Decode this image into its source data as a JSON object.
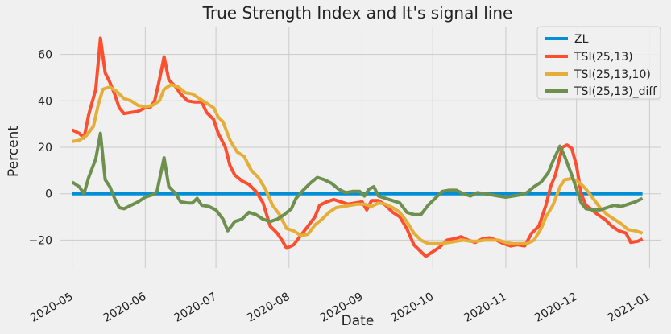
{
  "chart_data": {
    "type": "line",
    "title": "True Strength Index and It's signal line",
    "xlabel": "Date",
    "ylabel": "Percent",
    "x_domain": [
      "2020-04-26",
      "2021-01-06"
    ],
    "ylim": [
      -32,
      72
    ],
    "y_ticks": [
      -20,
      0,
      20,
      40,
      60
    ],
    "y_tick_labels": [
      "−20",
      "0",
      "20",
      "40",
      "60"
    ],
    "x_ticks": [
      {
        "date": "2020-05-01",
        "label": "2020-05"
      },
      {
        "date": "2020-06-01",
        "label": "2020-06"
      },
      {
        "date": "2020-07-01",
        "label": "2020-07"
      },
      {
        "date": "2020-08-01",
        "label": "2020-08"
      },
      {
        "date": "2020-09-01",
        "label": "2020-09"
      },
      {
        "date": "2020-10-01",
        "label": "2020-10"
      },
      {
        "date": "2020-11-01",
        "label": "2020-11"
      },
      {
        "date": "2020-12-01",
        "label": "2020-12"
      },
      {
        "date": "2021-01-01",
        "label": "2021-01"
      }
    ],
    "grid": true,
    "legend_position": "top-right",
    "series": [
      {
        "name": "ZL",
        "color": "#008fd5",
        "points": [
          [
            "2020-05-01",
            0
          ],
          [
            "2020-12-29",
            0
          ]
        ]
      },
      {
        "name": "TSI(25,13)",
        "color": "#fc4f30",
        "points": [
          [
            "2020-05-01",
            27.5
          ],
          [
            "2020-05-04",
            26
          ],
          [
            "2020-05-06",
            24
          ],
          [
            "2020-05-08",
            34
          ],
          [
            "2020-05-11",
            45
          ],
          [
            "2020-05-13",
            67
          ],
          [
            "2020-05-15",
            52
          ],
          [
            "2020-05-17",
            48
          ],
          [
            "2020-05-19",
            43
          ],
          [
            "2020-05-21",
            37
          ],
          [
            "2020-05-23",
            34.5
          ],
          [
            "2020-05-26",
            35
          ],
          [
            "2020-05-29",
            35.5
          ],
          [
            "2020-06-01",
            37
          ],
          [
            "2020-06-03",
            37
          ],
          [
            "2020-06-05",
            40
          ],
          [
            "2020-06-07",
            49
          ],
          [
            "2020-06-09",
            59
          ],
          [
            "2020-06-11",
            49
          ],
          [
            "2020-06-14",
            46
          ],
          [
            "2020-06-16",
            43
          ],
          [
            "2020-06-19",
            40
          ],
          [
            "2020-06-22",
            39.5
          ],
          [
            "2020-06-25",
            39.5
          ],
          [
            "2020-06-27",
            35
          ],
          [
            "2020-06-30",
            32
          ],
          [
            "2020-07-02",
            26
          ],
          [
            "2020-07-05",
            20
          ],
          [
            "2020-07-07",
            12
          ],
          [
            "2020-07-09",
            8
          ],
          [
            "2020-07-12",
            5.5
          ],
          [
            "2020-07-15",
            4
          ],
          [
            "2020-07-18",
            1
          ],
          [
            "2020-07-21",
            -4
          ],
          [
            "2020-07-24",
            -14
          ],
          [
            "2020-07-27",
            -17
          ],
          [
            "2020-07-29",
            -20
          ],
          [
            "2020-07-31",
            -23.5
          ],
          [
            "2020-08-03",
            -22
          ],
          [
            "2020-08-06",
            -18
          ],
          [
            "2020-08-09",
            -14
          ],
          [
            "2020-08-12",
            -10
          ],
          [
            "2020-08-14",
            -5
          ],
          [
            "2020-08-17",
            -3.5
          ],
          [
            "2020-08-20",
            -2.5
          ],
          [
            "2020-08-23",
            -3.5
          ],
          [
            "2020-08-26",
            -4.5
          ],
          [
            "2020-08-29",
            -4
          ],
          [
            "2020-09-01",
            -3.5
          ],
          [
            "2020-09-03",
            -7
          ],
          [
            "2020-09-05",
            -3
          ],
          [
            "2020-09-08",
            -3
          ],
          [
            "2020-09-11",
            -5
          ],
          [
            "2020-09-14",
            -8
          ],
          [
            "2020-09-17",
            -10
          ],
          [
            "2020-09-20",
            -15
          ],
          [
            "2020-09-23",
            -22
          ],
          [
            "2020-09-26",
            -25
          ],
          [
            "2020-09-28",
            -27
          ],
          [
            "2020-10-01",
            -25
          ],
          [
            "2020-10-04",
            -23
          ],
          [
            "2020-10-07",
            -20
          ],
          [
            "2020-10-10",
            -19.5
          ],
          [
            "2020-10-13",
            -18.5
          ],
          [
            "2020-10-16",
            -20
          ],
          [
            "2020-10-19",
            -21
          ],
          [
            "2020-10-22",
            -19.5
          ],
          [
            "2020-10-25",
            -19
          ],
          [
            "2020-10-28",
            -20
          ],
          [
            "2020-10-31",
            -21.5
          ],
          [
            "2020-11-03",
            -22.5
          ],
          [
            "2020-11-06",
            -22
          ],
          [
            "2020-11-09",
            -22.5
          ],
          [
            "2020-11-12",
            -17
          ],
          [
            "2020-11-15",
            -14
          ],
          [
            "2020-11-18",
            -5
          ],
          [
            "2020-11-20",
            3
          ],
          [
            "2020-11-22",
            8
          ],
          [
            "2020-11-25",
            20
          ],
          [
            "2020-11-27",
            21
          ],
          [
            "2020-11-29",
            19.5
          ],
          [
            "2020-12-01",
            12
          ],
          [
            "2020-12-03",
            0
          ],
          [
            "2020-12-05",
            -5
          ],
          [
            "2020-12-07",
            -6.5
          ],
          [
            "2020-12-10",
            -9
          ],
          [
            "2020-12-13",
            -11
          ],
          [
            "2020-12-16",
            -14
          ],
          [
            "2020-12-19",
            -16
          ],
          [
            "2020-12-22",
            -17
          ],
          [
            "2020-12-24",
            -21
          ],
          [
            "2020-12-27",
            -20.5
          ],
          [
            "2020-12-29",
            -19.5
          ]
        ]
      },
      {
        "name": "TSI(25,13,10)",
        "color": "#e5ae38",
        "points": [
          [
            "2020-05-01",
            22.5
          ],
          [
            "2020-05-04",
            23
          ],
          [
            "2020-05-07",
            25
          ],
          [
            "2020-05-10",
            29
          ],
          [
            "2020-05-12",
            38
          ],
          [
            "2020-05-14",
            45
          ],
          [
            "2020-05-17",
            46
          ],
          [
            "2020-05-20",
            44
          ],
          [
            "2020-05-23",
            41
          ],
          [
            "2020-05-26",
            40
          ],
          [
            "2020-05-29",
            38
          ],
          [
            "2020-06-01",
            37.5
          ],
          [
            "2020-06-04",
            38
          ],
          [
            "2020-06-07",
            40
          ],
          [
            "2020-06-09",
            45
          ],
          [
            "2020-06-12",
            47
          ],
          [
            "2020-06-15",
            46
          ],
          [
            "2020-06-18",
            43.5
          ],
          [
            "2020-06-21",
            43
          ],
          [
            "2020-06-24",
            41
          ],
          [
            "2020-06-27",
            39
          ],
          [
            "2020-06-30",
            37
          ],
          [
            "2020-07-02",
            33
          ],
          [
            "2020-07-04",
            31
          ],
          [
            "2020-07-07",
            23
          ],
          [
            "2020-07-10",
            18
          ],
          [
            "2020-07-13",
            16
          ],
          [
            "2020-07-16",
            10
          ],
          [
            "2020-07-19",
            7
          ],
          [
            "2020-07-22",
            2
          ],
          [
            "2020-07-25",
            -5
          ],
          [
            "2020-07-28",
            -9
          ],
          [
            "2020-07-31",
            -15
          ],
          [
            "2020-08-03",
            -16
          ],
          [
            "2020-08-06",
            -18
          ],
          [
            "2020-08-09",
            -17.5
          ],
          [
            "2020-08-12",
            -13.5
          ],
          [
            "2020-08-15",
            -11
          ],
          [
            "2020-08-18",
            -8
          ],
          [
            "2020-08-21",
            -6
          ],
          [
            "2020-08-24",
            -5.5
          ],
          [
            "2020-08-27",
            -5
          ],
          [
            "2020-08-30",
            -4.5
          ],
          [
            "2020-09-02",
            -4.5
          ],
          [
            "2020-09-05",
            -5.5
          ],
          [
            "2020-09-08",
            -4
          ],
          [
            "2020-09-11",
            -4.5
          ],
          [
            "2020-09-14",
            -6
          ],
          [
            "2020-09-17",
            -8
          ],
          [
            "2020-09-20",
            -12
          ],
          [
            "2020-09-23",
            -17
          ],
          [
            "2020-09-26",
            -20
          ],
          [
            "2020-09-29",
            -21.5
          ],
          [
            "2020-10-02",
            -21.5
          ],
          [
            "2020-10-05",
            -21.5
          ],
          [
            "2020-10-08",
            -21
          ],
          [
            "2020-10-11",
            -20.5
          ],
          [
            "2020-10-14",
            -20
          ],
          [
            "2020-10-17",
            -20.5
          ],
          [
            "2020-10-20",
            -20.5
          ],
          [
            "2020-10-23",
            -20
          ],
          [
            "2020-10-26",
            -20
          ],
          [
            "2020-10-29",
            -20
          ],
          [
            "2020-11-01",
            -21
          ],
          [
            "2020-11-04",
            -21.5
          ],
          [
            "2020-11-07",
            -21.5
          ],
          [
            "2020-11-10",
            -21.5
          ],
          [
            "2020-11-13",
            -20
          ],
          [
            "2020-11-16",
            -15
          ],
          [
            "2020-11-18",
            -10
          ],
          [
            "2020-11-21",
            -5
          ],
          [
            "2020-11-24",
            3
          ],
          [
            "2020-11-26",
            6
          ],
          [
            "2020-11-29",
            6.5
          ],
          [
            "2020-12-02",
            5
          ],
          [
            "2020-12-05",
            2
          ],
          [
            "2020-12-08",
            -2
          ],
          [
            "2020-12-11",
            -6
          ],
          [
            "2020-12-14",
            -9
          ],
          [
            "2020-12-17",
            -11
          ],
          [
            "2020-12-20",
            -13
          ],
          [
            "2020-12-23",
            -15.5
          ],
          [
            "2020-12-26",
            -16
          ],
          [
            "2020-12-29",
            -17
          ]
        ]
      },
      {
        "name": "TSI(25,13)_diff",
        "color": "#6d904f",
        "points": [
          [
            "2020-05-01",
            5
          ],
          [
            "2020-05-04",
            3
          ],
          [
            "2020-05-06",
            0
          ],
          [
            "2020-05-08",
            7
          ],
          [
            "2020-05-11",
            15
          ],
          [
            "2020-05-13",
            26
          ],
          [
            "2020-05-15",
            6
          ],
          [
            "2020-05-17",
            3
          ],
          [
            "2020-05-19",
            -2
          ],
          [
            "2020-05-21",
            -6
          ],
          [
            "2020-05-23",
            -6.5
          ],
          [
            "2020-05-26",
            -5
          ],
          [
            "2020-05-29",
            -3.5
          ],
          [
            "2020-06-01",
            -1.5
          ],
          [
            "2020-06-04",
            -0.5
          ],
          [
            "2020-06-06",
            1
          ],
          [
            "2020-06-09",
            15.5
          ],
          [
            "2020-06-11",
            3
          ],
          [
            "2020-06-14",
            0
          ],
          [
            "2020-06-16",
            -3.5
          ],
          [
            "2020-06-19",
            -4
          ],
          [
            "2020-06-21",
            -4
          ],
          [
            "2020-06-23",
            -2
          ],
          [
            "2020-06-25",
            -5
          ],
          [
            "2020-06-28",
            -5.5
          ],
          [
            "2020-07-01",
            -7
          ],
          [
            "2020-07-04",
            -11
          ],
          [
            "2020-07-06",
            -16
          ],
          [
            "2020-07-09",
            -12
          ],
          [
            "2020-07-12",
            -11
          ],
          [
            "2020-07-15",
            -8
          ],
          [
            "2020-07-18",
            -9
          ],
          [
            "2020-07-21",
            -11
          ],
          [
            "2020-07-24",
            -12
          ],
          [
            "2020-07-27",
            -11
          ],
          [
            "2020-07-30",
            -9
          ],
          [
            "2020-08-02",
            -6.5
          ],
          [
            "2020-08-04",
            -2
          ],
          [
            "2020-08-07",
            1.5
          ],
          [
            "2020-08-10",
            4.5
          ],
          [
            "2020-08-13",
            7
          ],
          [
            "2020-08-16",
            6
          ],
          [
            "2020-08-19",
            4.5
          ],
          [
            "2020-08-22",
            2
          ],
          [
            "2020-08-25",
            0.5
          ],
          [
            "2020-08-28",
            1
          ],
          [
            "2020-08-31",
            1
          ],
          [
            "2020-09-02",
            -1
          ],
          [
            "2020-09-04",
            2
          ],
          [
            "2020-09-06",
            3
          ],
          [
            "2020-09-08",
            -1
          ],
          [
            "2020-09-11",
            -2
          ],
          [
            "2020-09-14",
            -3
          ],
          [
            "2020-09-17",
            -4
          ],
          [
            "2020-09-20",
            -8
          ],
          [
            "2020-09-23",
            -9
          ],
          [
            "2020-09-26",
            -9
          ],
          [
            "2020-09-29",
            -5
          ],
          [
            "2020-10-02",
            -2
          ],
          [
            "2020-10-05",
            1
          ],
          [
            "2020-10-08",
            1.5
          ],
          [
            "2020-10-11",
            1.5
          ],
          [
            "2020-10-14",
            0
          ],
          [
            "2020-10-17",
            -1
          ],
          [
            "2020-10-20",
            0.5
          ],
          [
            "2020-10-23",
            0
          ],
          [
            "2020-10-26",
            -0.5
          ],
          [
            "2020-10-29",
            -1
          ],
          [
            "2020-11-01",
            -1.5
          ],
          [
            "2020-11-04",
            -1
          ],
          [
            "2020-11-07",
            -0.5
          ],
          [
            "2020-11-10",
            0.5
          ],
          [
            "2020-11-13",
            3
          ],
          [
            "2020-11-16",
            5
          ],
          [
            "2020-11-19",
            9
          ],
          [
            "2020-11-21",
            14
          ],
          [
            "2020-11-24",
            20.5
          ],
          [
            "2020-11-26",
            16
          ],
          [
            "2020-11-29",
            8
          ],
          [
            "2020-12-01",
            2
          ],
          [
            "2020-12-03",
            -4
          ],
          [
            "2020-12-05",
            -6.5
          ],
          [
            "2020-12-08",
            -7
          ],
          [
            "2020-12-11",
            -7
          ],
          [
            "2020-12-14",
            -6
          ],
          [
            "2020-12-17",
            -5
          ],
          [
            "2020-12-20",
            -5.5
          ],
          [
            "2020-12-23",
            -4.5
          ],
          [
            "2020-12-26",
            -3.5
          ],
          [
            "2020-12-29",
            -2
          ]
        ]
      }
    ]
  }
}
